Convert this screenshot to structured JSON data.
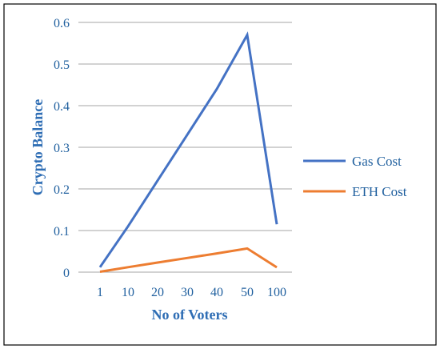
{
  "chart_data": {
    "type": "line",
    "categories": [
      "1",
      "10",
      "20",
      "30",
      "40",
      "50",
      "100"
    ],
    "series": [
      {
        "name": "Gas Cost",
        "values": [
          0.012,
          0.11,
          0.22,
          0.33,
          0.44,
          0.57,
          0.115
        ],
        "color": "#4472c4"
      },
      {
        "name": "ETH Cost",
        "values": [
          0.001,
          0.012,
          0.023,
          0.034,
          0.045,
          0.057,
          0.0115
        ],
        "color": "#ed7d31"
      }
    ],
    "title": "",
    "xlabel": "No of Voters",
    "ylabel": "Crypto Balance",
    "ylim": [
      0,
      0.6
    ],
    "yticks": [
      "0",
      "0.1",
      "0.2",
      "0.3",
      "0.4",
      "0.5",
      "0.6"
    ],
    "grid": "horizontal",
    "legend": "right",
    "frame_color": "#000000",
    "grid_color": "#a6a6a6"
  }
}
